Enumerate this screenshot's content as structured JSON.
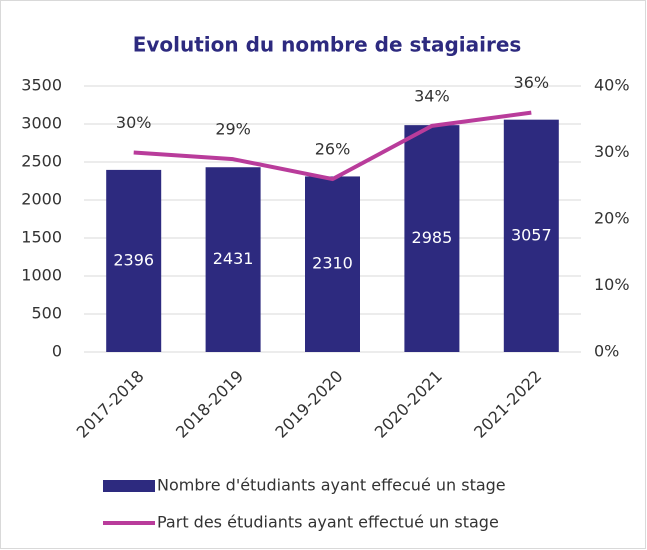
{
  "chart_data": {
    "type": "bar-line",
    "title": "Evolution du nombre de stagiaires",
    "categories": [
      "2017-2018",
      "2018-2019",
      "2019-2020",
      "2020-2021",
      "2021-2022"
    ],
    "series": [
      {
        "name": "Nombre d'étudiants ayant effecué un stage",
        "type": "bar",
        "color": "#2d2a7f",
        "values": [
          2396,
          2431,
          2310,
          2985,
          3057
        ]
      },
      {
        "name": "Part des étudiants ayant effectué un stage",
        "type": "line",
        "axis": "y2",
        "color": "#b93c9b",
        "values": [
          30,
          29,
          26,
          34,
          36
        ],
        "value_labels": [
          "30%",
          "29%",
          "26%",
          "34%",
          "36%"
        ]
      }
    ],
    "ylim": [
      0,
      3500
    ],
    "yticks": [
      0,
      500,
      1000,
      1500,
      2000,
      2500,
      3000,
      3500
    ],
    "y2lim": [
      0,
      40
    ],
    "y2ticks": [
      {
        "value": 0,
        "label": "0%"
      },
      {
        "value": 10,
        "label": "10%"
      },
      {
        "value": 20,
        "label": "20%"
      },
      {
        "value": 30,
        "label": "30%"
      },
      {
        "value": 40,
        "label": "40%"
      }
    ],
    "grid": true,
    "legend": "bottom"
  }
}
